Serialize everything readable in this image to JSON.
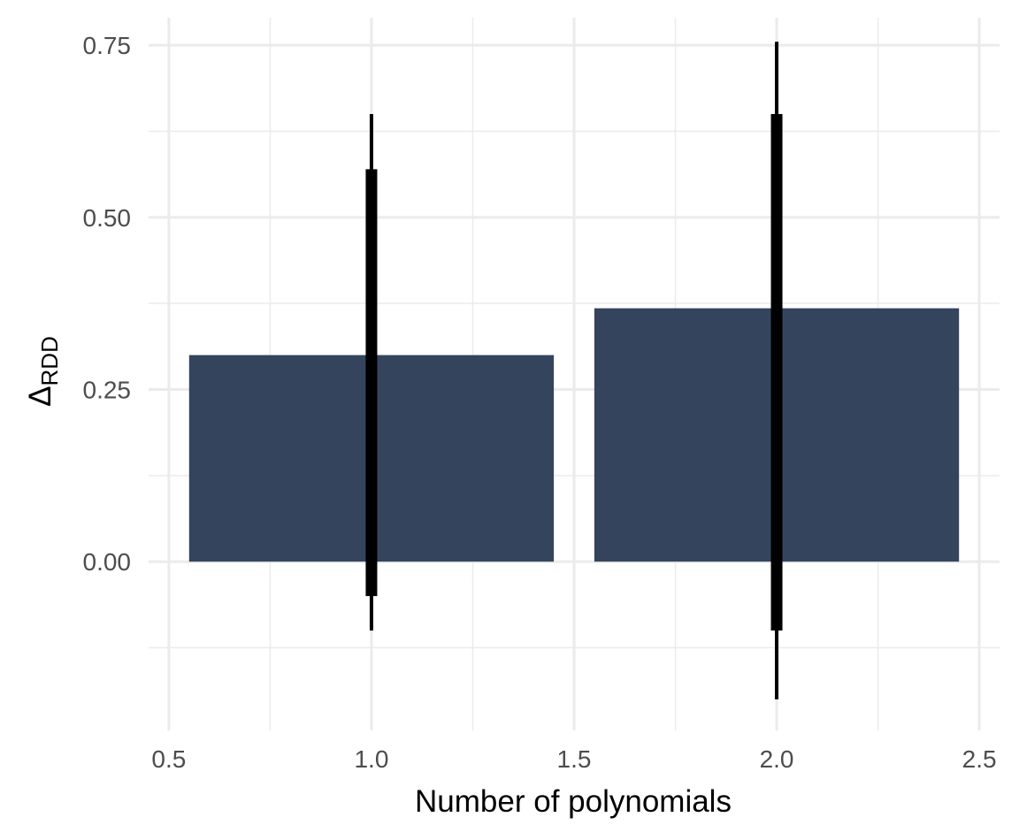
{
  "chart_data": {
    "type": "bar",
    "xlabel": "Number of polynomials",
    "ylabel_main": "Δ",
    "ylabel_sub": "RDD",
    "xlim": [
      0.45,
      2.55
    ],
    "ylim": [
      -0.245,
      0.79
    ],
    "x_ticks": [
      0.5,
      1.0,
      1.5,
      2.0,
      2.5
    ],
    "x_tick_labels": [
      "0.5",
      "1.0",
      "1.5",
      "2.0",
      "2.5"
    ],
    "y_ticks": [
      0.0,
      0.25,
      0.5,
      0.75
    ],
    "y_tick_labels": [
      "0.00",
      "0.25",
      "0.50",
      "0.75"
    ],
    "x_minor": [
      0.75,
      1.25,
      1.75,
      2.25
    ],
    "y_minor": [
      -0.125,
      0.125,
      0.375,
      0.625
    ],
    "bar_width": 0.9,
    "grid": true,
    "colors": {
      "bar": "#34445c",
      "error_bar": "#000000",
      "grid": "#ebebeb"
    },
    "series": [
      {
        "categories": [
          1,
          2
        ],
        "values": [
          0.3,
          0.368
        ],
        "inner_interval": [
          [
            -0.05,
            0.57
          ],
          [
            -0.1,
            0.65
          ]
        ],
        "outer_interval": [
          [
            -0.1,
            0.65
          ],
          [
            -0.2,
            0.755
          ]
        ]
      }
    ]
  }
}
